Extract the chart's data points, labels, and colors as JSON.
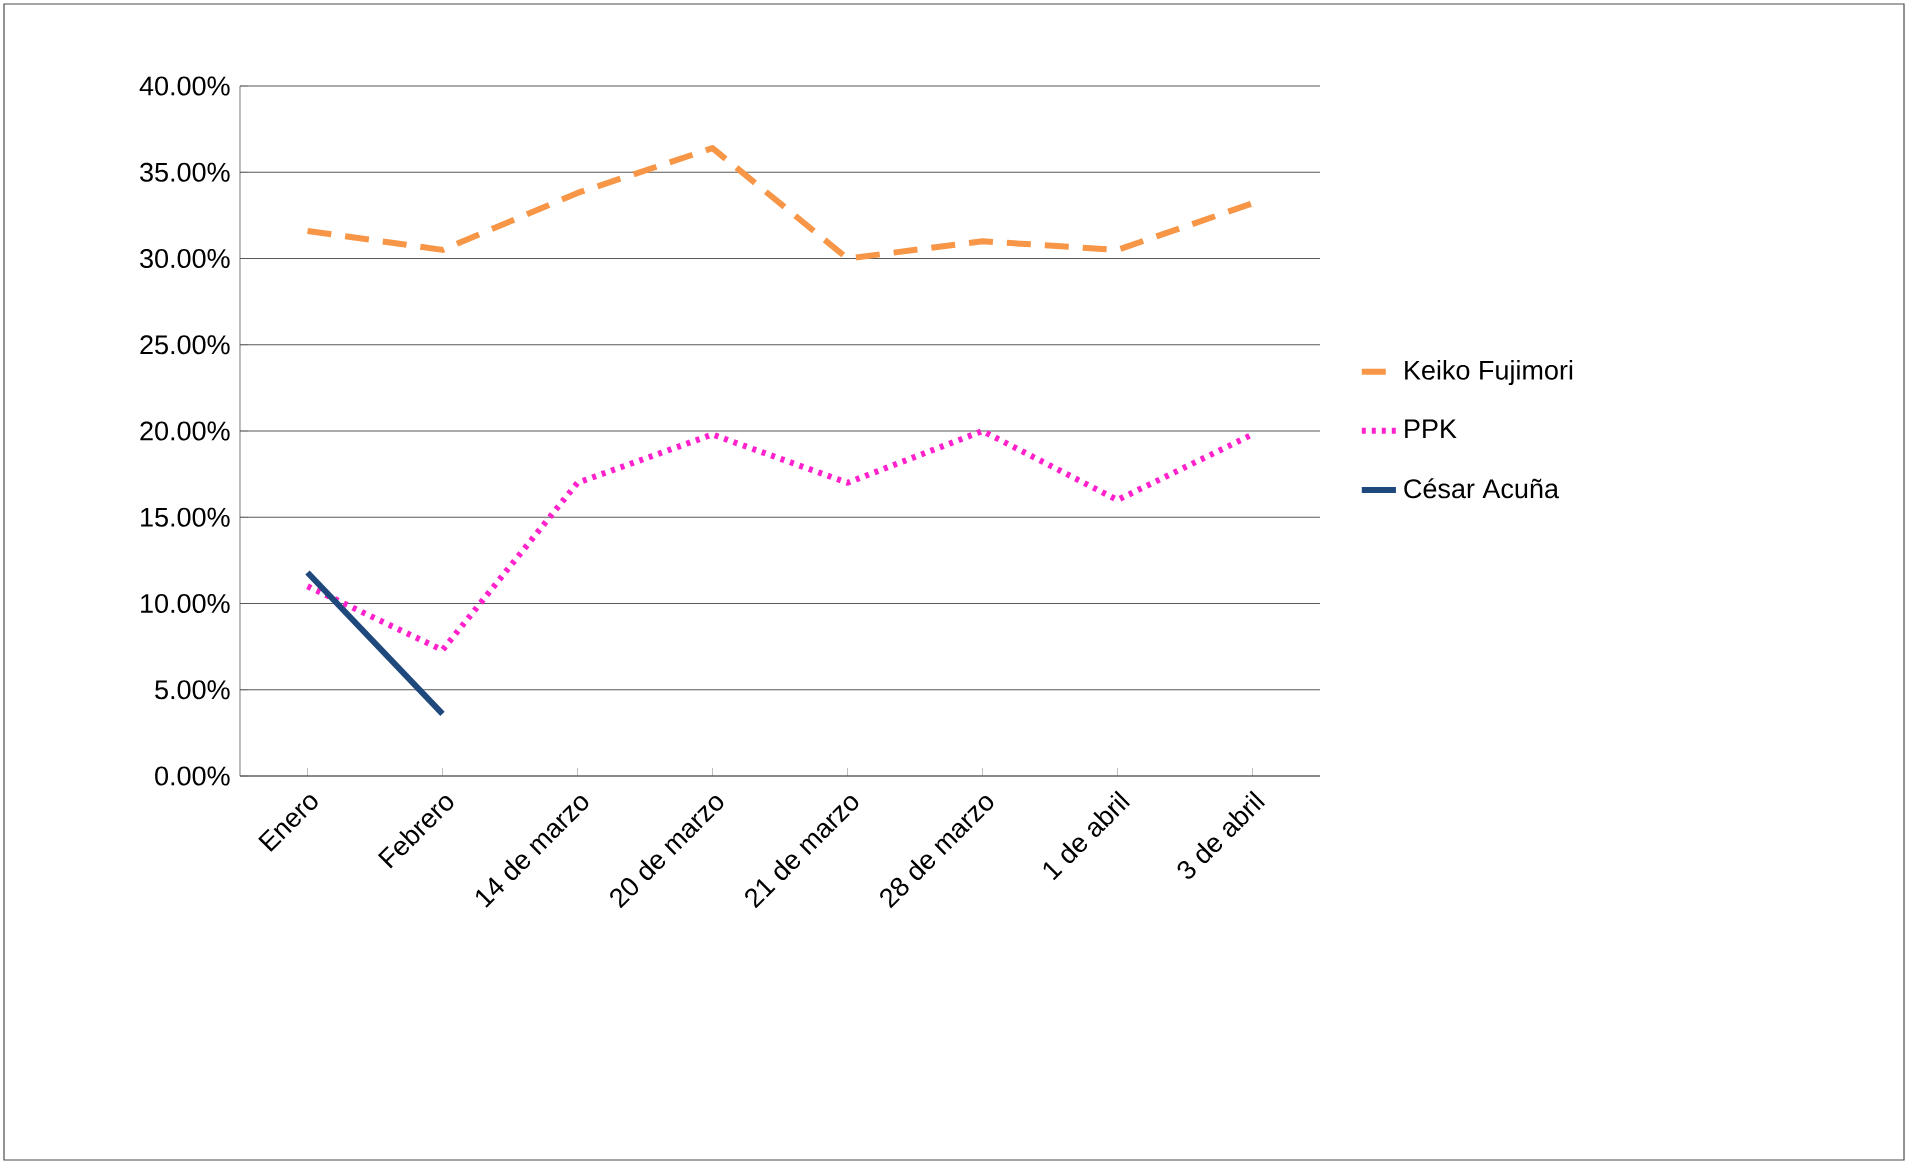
{
  "chart_data": {
    "type": "line",
    "categories": [
      "Enero",
      "Febrero",
      "14 de marzo",
      "20  de marzo",
      "21 de marzo",
      "28 de marzo",
      "1 de abril",
      "3 de abril"
    ],
    "series": [
      {
        "name": "Keiko Fujimori",
        "color": "#f79646",
        "line_style": "dashed",
        "values": [
          31.6,
          30.5,
          33.8,
          36.4,
          30.0,
          31.0,
          30.5,
          33.2
        ]
      },
      {
        "name": "PPK",
        "color": "#ff22cc",
        "line_style": "dotted",
        "values": [
          11.0,
          7.3,
          17.0,
          19.8,
          17.0,
          20.0,
          16.0,
          19.8
        ]
      },
      {
        "name": "César Acuña",
        "color": "#1f497d",
        "line_style": "solid",
        "values": [
          11.8,
          3.6,
          null,
          null,
          null,
          null,
          null,
          null
        ]
      }
    ],
    "ylim": [
      0,
      40
    ],
    "yticks": [
      {
        "value": 0,
        "label": "0.00%"
      },
      {
        "value": 5,
        "label": "5.00%"
      },
      {
        "value": 10,
        "label": "10.00%"
      },
      {
        "value": 15,
        "label": "15.00%"
      },
      {
        "value": 20,
        "label": "20.00%"
      },
      {
        "value": 25,
        "label": "25.00%"
      },
      {
        "value": 30,
        "label": "30.00%"
      },
      {
        "value": 35,
        "label": "35.00%"
      },
      {
        "value": 40,
        "label": "40.00%"
      }
    ],
    "grid": "y",
    "legend": "right",
    "marker": "none"
  }
}
